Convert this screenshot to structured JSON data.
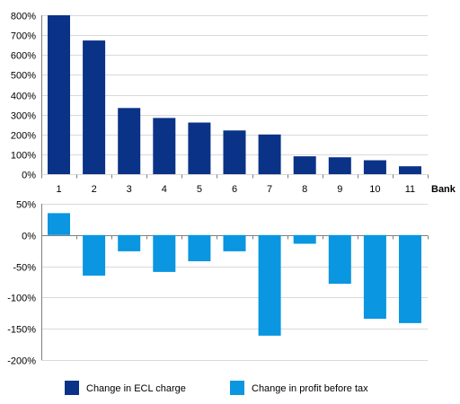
{
  "chart_data": [
    {
      "type": "bar",
      "categories": [
        "1",
        "2",
        "3",
        "4",
        "5",
        "6",
        "7",
        "8",
        "9",
        "10",
        "11"
      ],
      "xlabel": "Bank",
      "ylim": [
        0,
        800
      ],
      "yticks": [
        0,
        100,
        200,
        300,
        400,
        500,
        600,
        700,
        800
      ],
      "tick_suffix": "%",
      "grid": true,
      "series": [
        {
          "name": "Change in ECL charge",
          "color": "#0a3287",
          "values": [
            800,
            673,
            333,
            283,
            260,
            220,
            200,
            90,
            85,
            70,
            40
          ]
        }
      ]
    },
    {
      "type": "bar",
      "categories": [
        "1",
        "2",
        "3",
        "4",
        "5",
        "6",
        "7",
        "8",
        "9",
        "10",
        "11"
      ],
      "ylim": [
        -200,
        50
      ],
      "yticks": [
        50,
        0,
        -50,
        -100,
        -150,
        -200
      ],
      "tick_suffix": "%",
      "grid": true,
      "series": [
        {
          "name": "Change in profit before tax",
          "color": "#0a96e0",
          "values": [
            35,
            -65,
            -26,
            -59,
            -42,
            -26,
            -161,
            -14,
            -78,
            -134,
            -141
          ]
        }
      ]
    }
  ],
  "legend": {
    "position": "bottom",
    "items": [
      {
        "label": "Change in ECL charge",
        "color": "#0a3287"
      },
      {
        "label": "Change in profit before tax",
        "color": "#0a96e0"
      }
    ]
  }
}
